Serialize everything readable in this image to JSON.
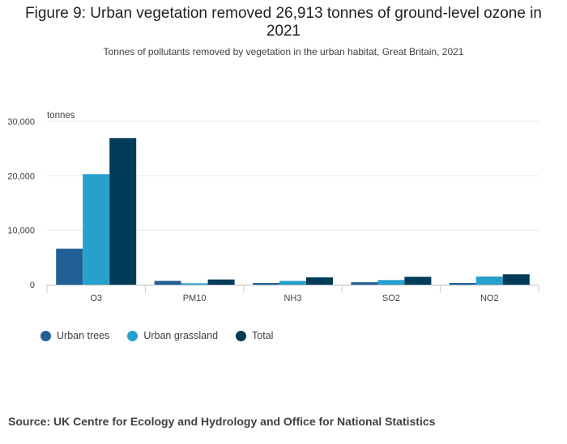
{
  "chart_data": {
    "type": "bar",
    "title": "Figure 9: Urban vegetation removed 26,913 tonnes of ground-level ozone in 2021",
    "subtitle": "Tonnes of pollutants removed by vegetation in the urban habitat, Great Britain, 2021",
    "ylabel": "tonnes",
    "xlabel": "",
    "ylim": [
      0,
      30000
    ],
    "yticks": [
      0,
      10000,
      20000,
      30000
    ],
    "ytick_labels": [
      "0",
      "10,000",
      "20,000",
      "30,000"
    ],
    "categories": [
      "O3",
      "PM10",
      "NH3",
      "SO2",
      "NO2"
    ],
    "series": [
      {
        "name": "Urban trees",
        "color": "#206095",
        "values": [
          6600,
          700,
          300,
          450,
          300
        ]
      },
      {
        "name": "Urban grassland",
        "color": "#27a0cc",
        "values": [
          20300,
          250,
          700,
          850,
          1500
        ]
      },
      {
        "name": "Total",
        "color": "#003c57",
        "values": [
          26913,
          950,
          1350,
          1450,
          1900
        ]
      }
    ],
    "legend_position": "bottom-left"
  },
  "source": "Source: UK Centre for Ecology and Hydrology and Office for National Statistics"
}
